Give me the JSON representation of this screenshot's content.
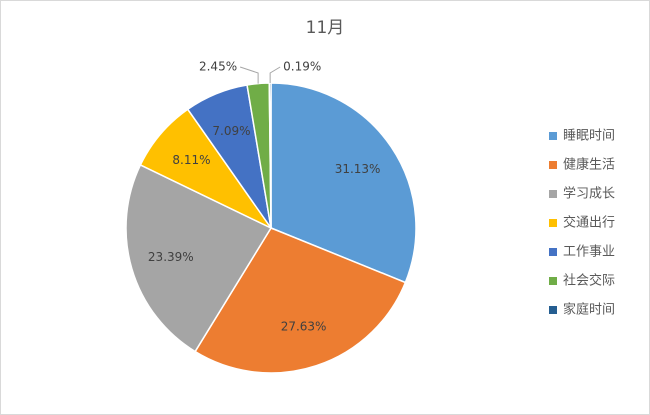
{
  "chart_data": {
    "type": "pie",
    "title": "11月",
    "categories": [
      "睡眠时间",
      "健康生活",
      "学习成长",
      "交通出行",
      "工作事业",
      "社会交际",
      "家庭时间"
    ],
    "values": [
      31.13,
      27.63,
      23.39,
      8.11,
      7.09,
      2.45,
      0.19
    ],
    "value_labels": [
      "31.13%",
      "27.63%",
      "23.39%",
      "8.11%",
      "7.09%",
      "2.45%",
      "0.19%"
    ],
    "colors": [
      "#5b9bd5",
      "#ed7d31",
      "#a5a5a5",
      "#ffc000",
      "#4472c4",
      "#70ad47",
      "#255e91"
    ],
    "legend": "right"
  }
}
